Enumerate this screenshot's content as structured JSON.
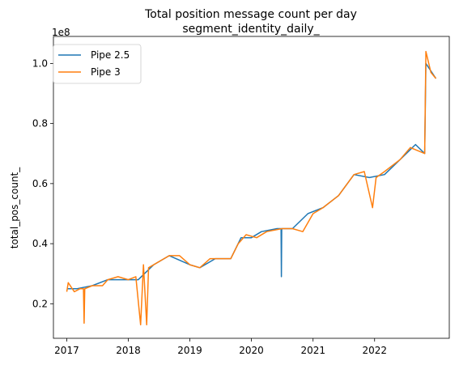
{
  "chart_data": {
    "type": "line",
    "title": "Total position message count per day",
    "subtitle": "segment_identity_daily_",
    "xlabel": "",
    "ylabel": "total_pos_count_",
    "y_offset_label": "1e8",
    "xlim": [
      "2016-10-14",
      "2023-03-20"
    ],
    "ylim": [
      0.085,
      1.09
    ],
    "x_ticks": [
      "2017",
      "2018",
      "2019",
      "2020",
      "2021",
      "2022"
    ],
    "y_ticks": [
      "0.2",
      "0.4",
      "0.6",
      "0.8",
      "1.0"
    ],
    "grid": false,
    "legend_position": "upper-left",
    "series": [
      {
        "name": "Pipe 2.5",
        "color": "#1f77b4",
        "points": [
          [
            "2017-01-01",
            0.25
          ],
          [
            "2017-03-01",
            0.25
          ],
          [
            "2017-06-01",
            0.26
          ],
          [
            "2017-09-01",
            0.28
          ],
          [
            "2018-01-01",
            0.28
          ],
          [
            "2018-03-01",
            0.28
          ],
          [
            "2018-06-01",
            0.33
          ],
          [
            "2018-09-01",
            0.36
          ],
          [
            "2019-01-01",
            0.33
          ],
          [
            "2019-03-01",
            0.32
          ],
          [
            "2019-06-01",
            0.35
          ],
          [
            "2019-09-01",
            0.35
          ],
          [
            "2019-11-01",
            0.42
          ],
          [
            "2020-01-01",
            0.42
          ],
          [
            "2020-03-01",
            0.44
          ],
          [
            "2020-06-01",
            0.45
          ],
          [
            "2020-06-25",
            0.45
          ],
          [
            "2020-06-27",
            0.29
          ],
          [
            "2020-06-29",
            0.45
          ],
          [
            "2020-09-01",
            0.45
          ],
          [
            "2020-12-01",
            0.5
          ],
          [
            "2021-03-01",
            0.52
          ],
          [
            "2021-06-01",
            0.56
          ],
          [
            "2021-09-01",
            0.63
          ],
          [
            "2021-12-01",
            0.62
          ],
          [
            "2022-03-01",
            0.63
          ],
          [
            "2022-06-01",
            0.68
          ],
          [
            "2022-09-01",
            0.73
          ],
          [
            "2022-10-25",
            0.7
          ],
          [
            "2022-11-01",
            1.0
          ],
          [
            "2022-12-31",
            0.95
          ]
        ]
      },
      {
        "name": "Pipe 3",
        "color": "#ff7f0e",
        "points": [
          [
            "2017-01-01",
            0.24
          ],
          [
            "2017-01-10",
            0.27
          ],
          [
            "2017-02-15",
            0.24
          ],
          [
            "2017-03-20",
            0.25
          ],
          [
            "2017-04-10",
            0.25
          ],
          [
            "2017-04-14",
            0.135
          ],
          [
            "2017-04-18",
            0.25
          ],
          [
            "2017-06-01",
            0.26
          ],
          [
            "2017-08-01",
            0.26
          ],
          [
            "2017-09-01",
            0.28
          ],
          [
            "2017-11-01",
            0.29
          ],
          [
            "2018-01-01",
            0.28
          ],
          [
            "2018-02-15",
            0.29
          ],
          [
            "2018-03-15",
            0.13
          ],
          [
            "2018-04-01",
            0.33
          ],
          [
            "2018-04-20",
            0.13
          ],
          [
            "2018-05-01",
            0.32
          ],
          [
            "2018-07-01",
            0.34
          ],
          [
            "2018-09-01",
            0.36
          ],
          [
            "2018-11-01",
            0.36
          ],
          [
            "2019-01-01",
            0.33
          ],
          [
            "2019-03-01",
            0.32
          ],
          [
            "2019-05-01",
            0.35
          ],
          [
            "2019-09-01",
            0.35
          ],
          [
            "2019-10-15",
            0.4
          ],
          [
            "2019-12-01",
            0.43
          ],
          [
            "2020-02-01",
            0.42
          ],
          [
            "2020-04-01",
            0.44
          ],
          [
            "2020-07-01",
            0.45
          ],
          [
            "2020-09-01",
            0.45
          ],
          [
            "2020-11-01",
            0.44
          ],
          [
            "2021-01-01",
            0.5
          ],
          [
            "2021-03-01",
            0.52
          ],
          [
            "2021-06-01",
            0.56
          ],
          [
            "2021-09-01",
            0.63
          ],
          [
            "2021-11-01",
            0.64
          ],
          [
            "2021-12-20",
            0.52
          ],
          [
            "2022-01-10",
            0.62
          ],
          [
            "2022-03-01",
            0.64
          ],
          [
            "2022-06-01",
            0.68
          ],
          [
            "2022-08-01",
            0.72
          ],
          [
            "2022-10-25",
            0.7
          ],
          [
            "2022-11-01",
            1.04
          ],
          [
            "2022-12-01",
            0.97
          ],
          [
            "2022-12-31",
            0.95
          ]
        ]
      }
    ]
  }
}
